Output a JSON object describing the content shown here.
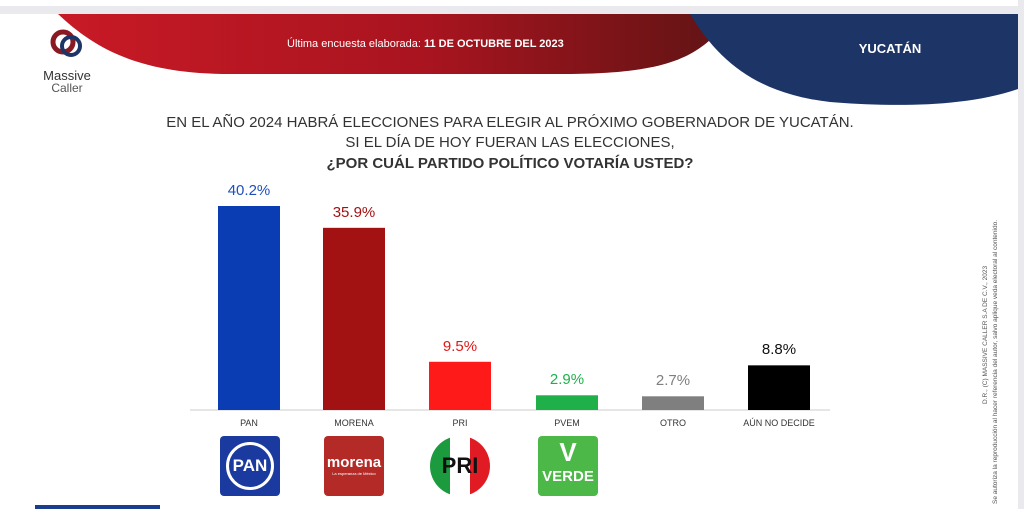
{
  "header": {
    "date_prefix": "Última encuesta elaborada:",
    "date": "11 DE OCTUBRE DEL 2023",
    "state": "YUCATÁN"
  },
  "logo": {
    "line1": "Massive",
    "line2": "Caller"
  },
  "question": {
    "line1": "EN EL AÑO 2024 HABRÁ ELECCIONES PARA ELEGIR AL PRÓXIMO GOBERNADOR DE YUCATÁN.",
    "line2": "SI EL DÍA DE HOY FUERAN LAS ELECCIONES,",
    "line3": "¿POR CUÁL PARTIDO POLÍTICO VOTARÍA USTED?"
  },
  "legal": {
    "line1": "D.R., (C) MASSIVE CALLER S.A DE C.V., 2023",
    "line2": "Se autoriza la reproducción al hacer referencia del autor, salvo aplique veda electoral al contenido."
  },
  "logos": {
    "pan": "PAN",
    "morena": "morena",
    "morena_sub": "La esperanza de México",
    "pri": "PRI",
    "verde": "VERDE"
  },
  "chart_data": {
    "type": "bar",
    "title": "¿POR CUÁL PARTIDO POLÍTICO VOTARÍA USTED?",
    "categories": [
      "PAN",
      "MORENA",
      "PRI",
      "PVEM",
      "OTRO",
      "AÚN NO DECIDE"
    ],
    "values": [
      40.2,
      35.9,
      9.5,
      2.9,
      2.7,
      8.8
    ],
    "labels": [
      "40.2%",
      "35.9%",
      "9.5%",
      "2.9%",
      "2.7%",
      "8.8%"
    ],
    "colors": [
      "#0a3cb4",
      "#a31212",
      "#ff1a1a",
      "#1fb04a",
      "#7f7f7f",
      "#000000"
    ],
    "label_colors": [
      "#1f4fbf",
      "#a31212",
      "#e01818",
      "#1fb04a",
      "#7f7f7f",
      "#111111"
    ],
    "ylim": [
      0,
      40.2
    ]
  }
}
